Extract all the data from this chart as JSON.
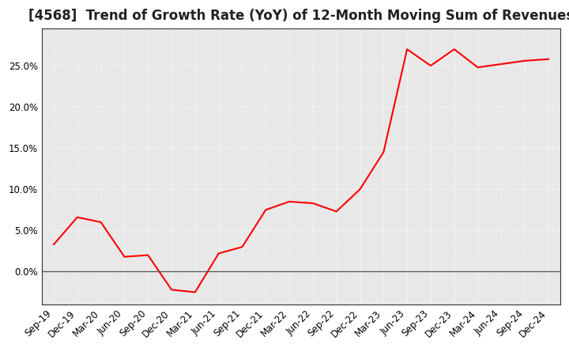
{
  "title": "[4568]  Trend of Growth Rate (YoY) of 12-Month Moving Sum of Revenues",
  "x_labels": [
    "Sep-19",
    "Dec-19",
    "Mar-20",
    "Jun-20",
    "Sep-20",
    "Dec-20",
    "Mar-21",
    "Jun-21",
    "Sep-21",
    "Dec-21",
    "Mar-22",
    "Jun-22",
    "Sep-22",
    "Dec-22",
    "Mar-23",
    "Jun-23",
    "Sep-23",
    "Dec-23",
    "Mar-24",
    "Jun-24",
    "Sep-24",
    "Dec-24"
  ],
  "y_values": [
    0.033,
    0.066,
    0.06,
    0.018,
    0.02,
    -0.022,
    -0.025,
    0.022,
    0.03,
    0.075,
    0.085,
    0.083,
    0.073,
    0.1,
    0.145,
    0.27,
    0.25,
    0.27,
    0.248,
    0.252,
    0.256,
    0.258
  ],
  "line_color": "#ff0000",
  "line_width": 1.5,
  "ylim_min": -0.04,
  "ylim_max": 0.295,
  "yticks": [
    0.0,
    0.05,
    0.1,
    0.15,
    0.2,
    0.25
  ],
  "plot_bg_color": "#e8e8e8",
  "fig_bg_color": "#ffffff",
  "grid_color": "#ffffff",
  "title_fontsize": 12,
  "axis_label_fontsize": 8.5
}
